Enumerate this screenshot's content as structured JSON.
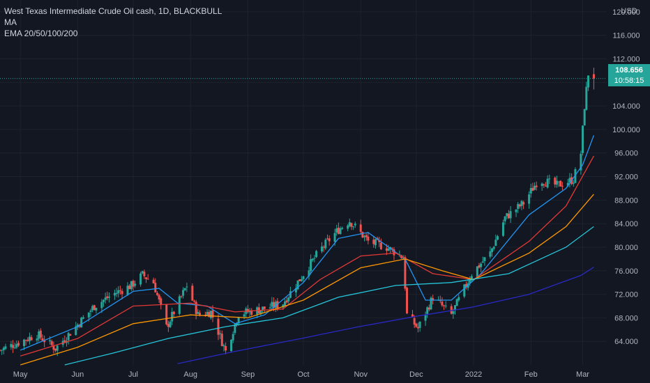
{
  "legend": {
    "title": "West Texas Intermediate Crude Oil cash, 1D, BLACKBULL",
    "ma": "MA",
    "ema": "EMA 20/50/100/200"
  },
  "price_axis": {
    "currency": "USD"
  },
  "last_price": {
    "value": "108.656",
    "countdown": "10:58:15"
  },
  "colors": {
    "background": "#131722",
    "grid": "#1e222d",
    "up": "#26a69a",
    "down": "#ef5350",
    "text": "#b2b5be",
    "ema20": "#2196f3",
    "ema50": "#e53935",
    "ema100": "#ff9800",
    "ema200": "#26c6da",
    "ma": "#2929c7"
  },
  "chart_data": {
    "type": "candlestick",
    "title": "West Texas Intermediate Crude Oil cash, 1D, BLACKBULL",
    "y_range": [
      60,
      122
    ],
    "y_ticks": [
      64,
      68,
      72,
      76,
      80,
      84,
      88,
      92,
      96,
      100,
      104,
      108,
      112,
      116,
      120
    ],
    "x_labels": [
      {
        "label": "May",
        "date": "2021-05-01"
      },
      {
        "label": "Jun",
        "date": "2021-06-01"
      },
      {
        "label": "Jul",
        "date": "2021-07-01"
      },
      {
        "label": "Aug",
        "date": "2021-08-01"
      },
      {
        "label": "Sep",
        "date": "2021-09-01"
      },
      {
        "label": "Oct",
        "date": "2021-10-01"
      },
      {
        "label": "Nov",
        "date": "2021-11-01"
      },
      {
        "label": "Dec",
        "date": "2021-12-01"
      },
      {
        "label": "2022",
        "date": "2022-01-01"
      },
      {
        "label": "Feb",
        "date": "2022-02-01"
      },
      {
        "label": "Mar",
        "date": "2022-03-01"
      }
    ],
    "date_range": [
      "2021-04-20",
      "2022-03-14"
    ],
    "close_path": [
      [
        "2021-04-20",
        62.5
      ],
      [
        "2021-04-30",
        63.8
      ],
      [
        "2021-05-10",
        65.2
      ],
      [
        "2021-05-20",
        62.8
      ],
      [
        "2021-05-31",
        66.5
      ],
      [
        "2021-06-10",
        70.0
      ],
      [
        "2021-06-20",
        72.0
      ],
      [
        "2021-06-30",
        73.5
      ],
      [
        "2021-07-06",
        75.3
      ],
      [
        "2021-07-12",
        74.0
      ],
      [
        "2021-07-19",
        66.4
      ],
      [
        "2021-07-30",
        73.5
      ],
      [
        "2021-08-05",
        68.5
      ],
      [
        "2021-08-12",
        69.0
      ],
      [
        "2021-08-20",
        62.3
      ],
      [
        "2021-08-27",
        68.7
      ],
      [
        "2021-09-10",
        69.6
      ],
      [
        "2021-09-20",
        70.5
      ],
      [
        "2021-09-30",
        75.0
      ],
      [
        "2021-10-10",
        79.5
      ],
      [
        "2021-10-20",
        83.0
      ],
      [
        "2021-10-26",
        84.5
      ],
      [
        "2021-11-05",
        81.0
      ],
      [
        "2021-11-15",
        80.0
      ],
      [
        "2021-11-24",
        78.3
      ],
      [
        "2021-11-26",
        68.5
      ],
      [
        "2021-12-02",
        66.2
      ],
      [
        "2021-12-10",
        71.5
      ],
      [
        "2021-12-20",
        68.5
      ],
      [
        "2021-12-31",
        75.5
      ],
      [
        "2022-01-10",
        79.0
      ],
      [
        "2022-01-18",
        85.0
      ],
      [
        "2022-01-28",
        87.5
      ],
      [
        "2022-02-05",
        91.5
      ],
      [
        "2022-02-15",
        90.5
      ],
      [
        "2022-02-24",
        91.5
      ],
      [
        "2022-02-28",
        96.0
      ],
      [
        "2022-03-02",
        104.0
      ],
      [
        "2022-03-04",
        109.5
      ],
      [
        "2022-03-07",
        108.656
      ]
    ],
    "series": [
      {
        "name": "EMA 20",
        "points": [
          [
            "2021-05-01",
            62.5
          ],
          [
            "2021-06-01",
            66.5
          ],
          [
            "2021-07-01",
            72.5
          ],
          [
            "2021-07-15",
            73.0
          ],
          [
            "2021-07-25",
            70.5
          ],
          [
            "2021-08-10",
            70.0
          ],
          [
            "2021-08-25",
            67.0
          ],
          [
            "2021-09-10",
            68.5
          ],
          [
            "2021-10-01",
            74.0
          ],
          [
            "2021-10-20",
            81.5
          ],
          [
            "2021-11-05",
            82.5
          ],
          [
            "2021-11-25",
            78.0
          ],
          [
            "2021-12-06",
            71.0
          ],
          [
            "2021-12-20",
            71.0
          ],
          [
            "2022-01-05",
            75.5
          ],
          [
            "2022-01-31",
            85.5
          ],
          [
            "2022-02-20",
            90.0
          ],
          [
            "2022-03-01",
            94.0
          ],
          [
            "2022-03-07",
            99.0
          ]
        ]
      },
      {
        "name": "EMA 50",
        "points": [
          [
            "2021-05-01",
            61.5
          ],
          [
            "2021-06-01",
            64.5
          ],
          [
            "2021-07-01",
            70.0
          ],
          [
            "2021-08-01",
            70.5
          ],
          [
            "2021-08-25",
            69.0
          ],
          [
            "2021-09-20",
            69.5
          ],
          [
            "2021-10-10",
            74.5
          ],
          [
            "2021-11-01",
            78.5
          ],
          [
            "2021-11-20",
            79.0
          ],
          [
            "2021-12-10",
            75.5
          ],
          [
            "2022-01-01",
            74.5
          ],
          [
            "2022-01-31",
            81.0
          ],
          [
            "2022-02-20",
            87.0
          ],
          [
            "2022-03-07",
            95.5
          ]
        ]
      },
      {
        "name": "EMA 100",
        "points": [
          [
            "2021-05-01",
            60.0
          ],
          [
            "2021-06-01",
            63.0
          ],
          [
            "2021-07-01",
            67.0
          ],
          [
            "2021-08-01",
            68.5
          ],
          [
            "2021-09-01",
            68.0
          ],
          [
            "2021-10-01",
            71.0
          ],
          [
            "2021-11-01",
            76.5
          ],
          [
            "2021-11-25",
            78.0
          ],
          [
            "2021-12-15",
            76.0
          ],
          [
            "2022-01-01",
            74.5
          ],
          [
            "2022-01-31",
            79.0
          ],
          [
            "2022-02-20",
            83.5
          ],
          [
            "2022-03-07",
            89.0
          ]
        ]
      },
      {
        "name": "EMA 200",
        "points": [
          [
            "2021-05-25",
            60.0
          ],
          [
            "2021-06-20",
            62.0
          ],
          [
            "2021-07-20",
            64.5
          ],
          [
            "2021-08-20",
            66.5
          ],
          [
            "2021-09-20",
            68.0
          ],
          [
            "2021-10-20",
            71.5
          ],
          [
            "2021-11-20",
            73.5
          ],
          [
            "2021-12-20",
            74.0
          ],
          [
            "2022-01-20",
            75.5
          ],
          [
            "2022-02-20",
            80.0
          ],
          [
            "2022-03-07",
            83.5
          ]
        ]
      },
      {
        "name": "MA",
        "points": [
          [
            "2021-07-25",
            60.2
          ],
          [
            "2021-08-25",
            62.3
          ],
          [
            "2021-09-30",
            64.5
          ],
          [
            "2021-10-31",
            66.5
          ],
          [
            "2021-11-30",
            68.2
          ],
          [
            "2021-12-31",
            69.8
          ],
          [
            "2022-01-31",
            72.0
          ],
          [
            "2022-02-28",
            75.2
          ],
          [
            "2022-03-07",
            76.6
          ]
        ]
      }
    ]
  }
}
